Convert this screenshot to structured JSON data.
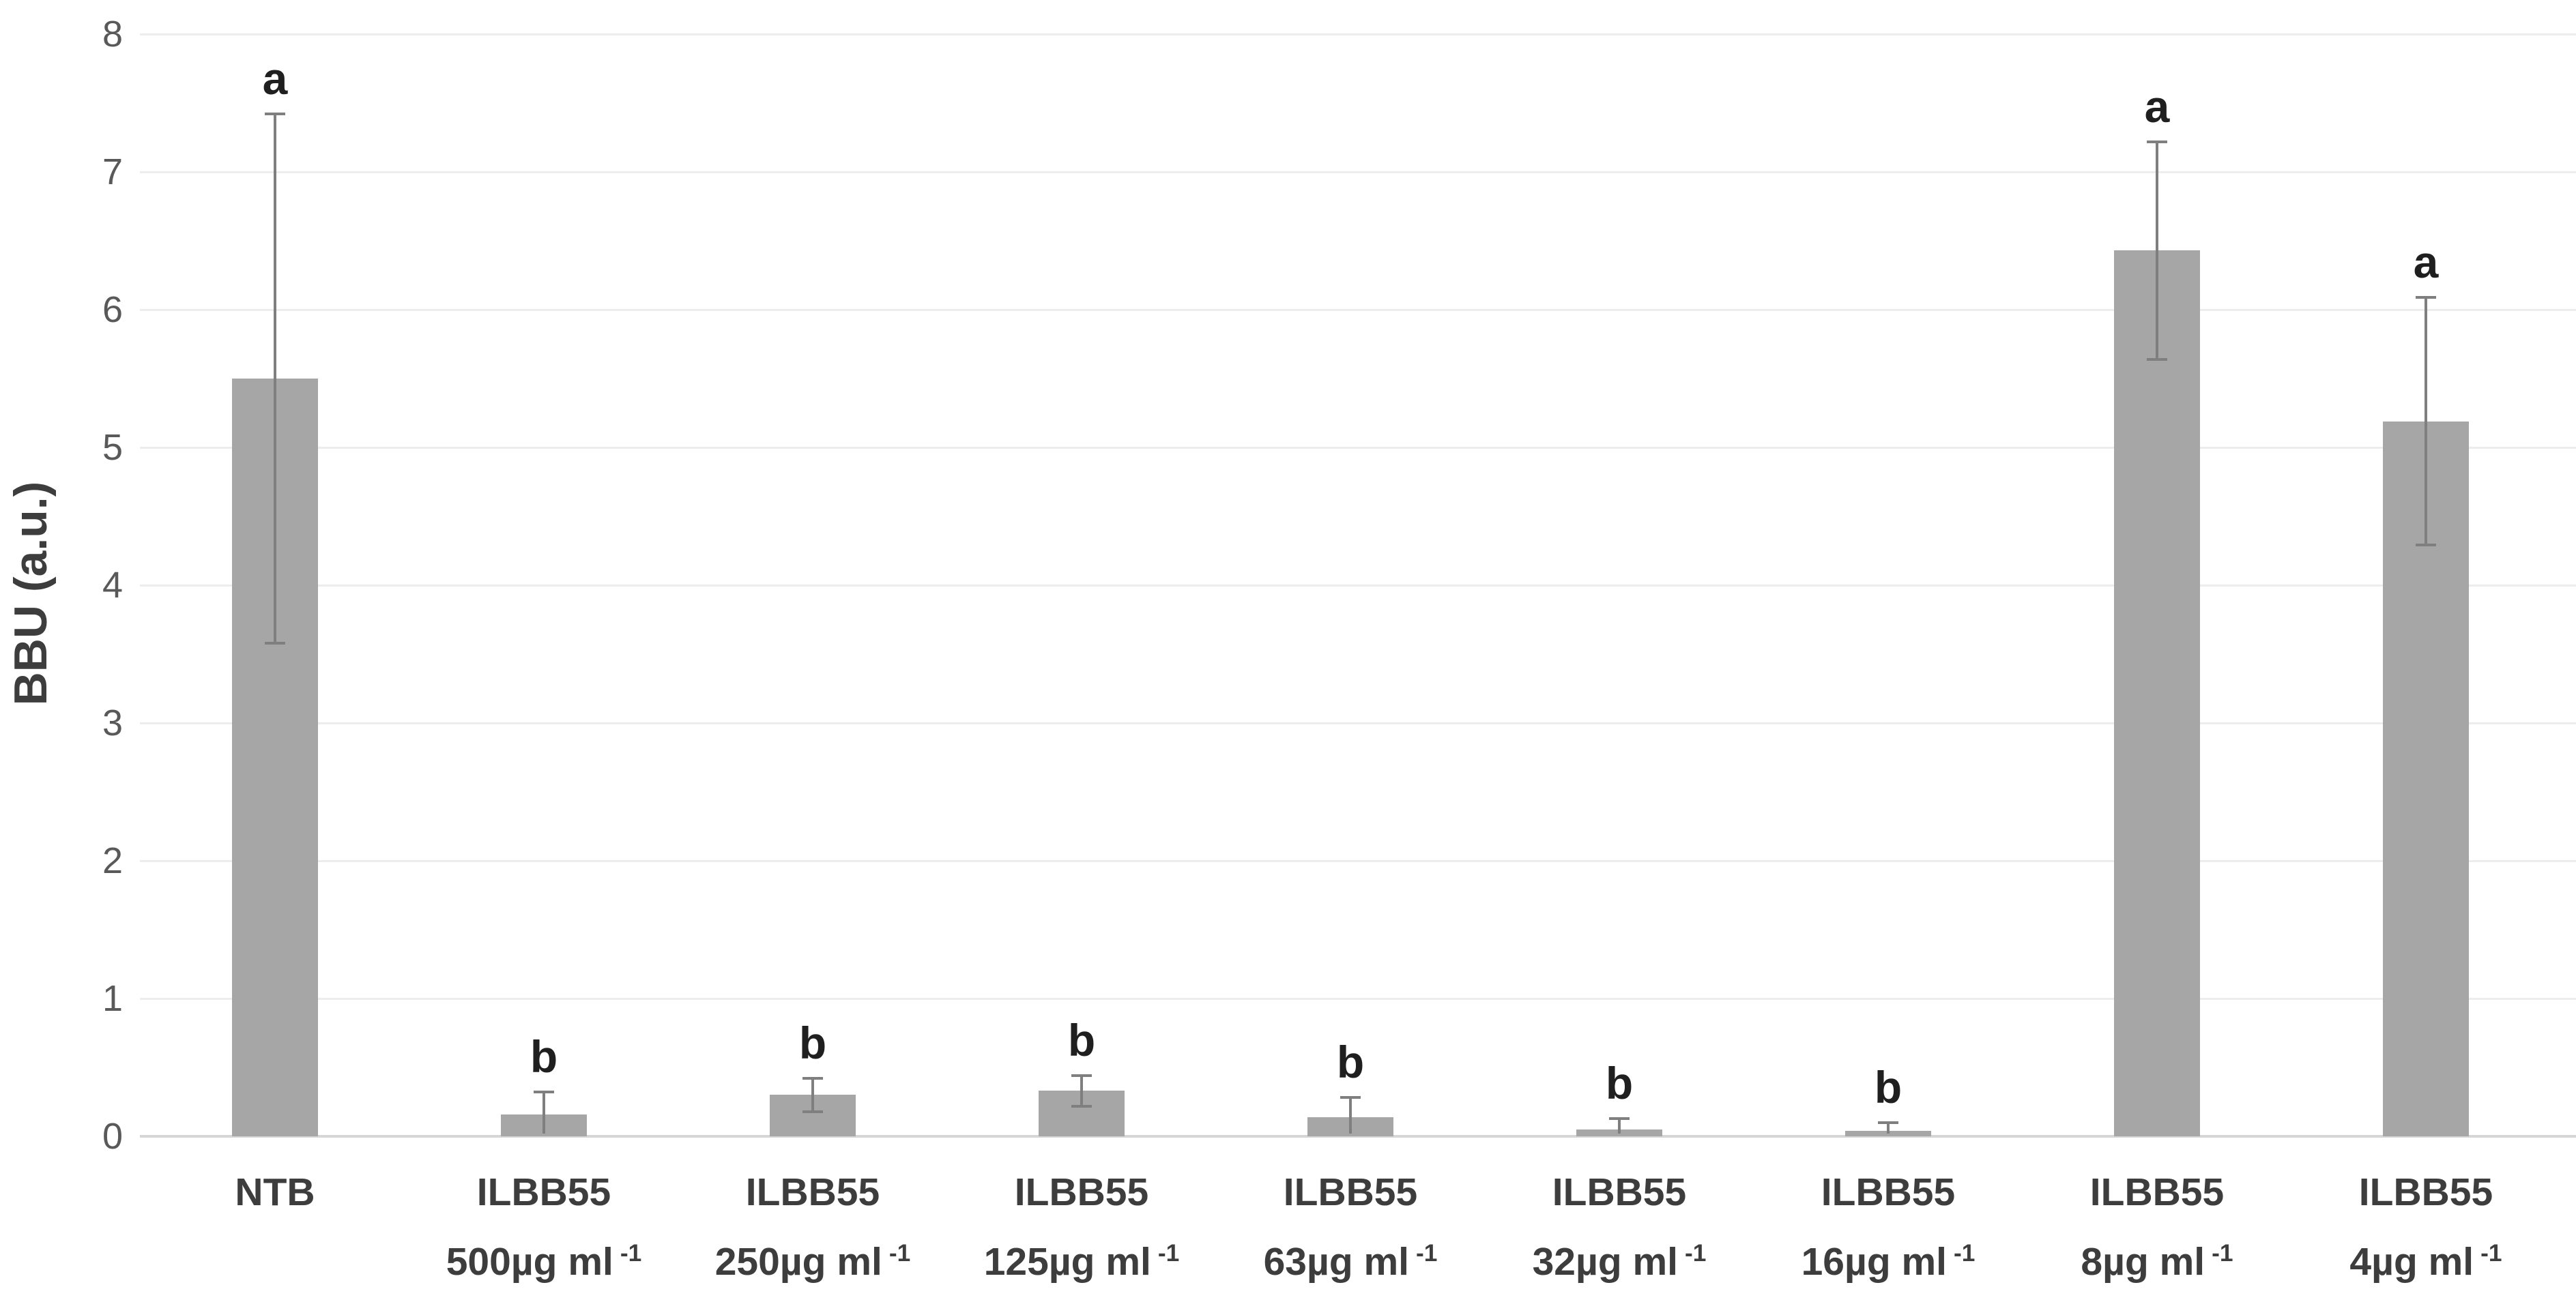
{
  "chart_data": {
    "type": "bar",
    "title": "",
    "xlabel": "",
    "ylabel": "BBU (a.u.)",
    "ylim": [
      0,
      8
    ],
    "yticks": [
      0,
      1,
      2,
      3,
      4,
      5,
      6,
      7,
      8
    ],
    "grid": true,
    "legend": false,
    "bar_color": "#a6a6a6",
    "error_color": "#7f7f7f",
    "grid_color": "#ededed",
    "axis_color": "#d6d6d6",
    "categories": [
      "NTB",
      "ILBB55 500µg ml⁻¹",
      "ILBB55 250µg ml⁻¹",
      "ILBB55 125µg ml⁻¹",
      "ILBB55 63µg ml⁻¹",
      "ILBB55 32µg ml⁻¹",
      "ILBB55 16µg ml⁻¹",
      "ILBB55 8µg ml⁻¹",
      "ILBB55 4µg ml⁻¹"
    ],
    "x_tick_labels": [
      {
        "line1": "NTB",
        "line2": "",
        "sup": ""
      },
      {
        "line1": "ILBB55",
        "line2": "500µg ml",
        "sup": "-1"
      },
      {
        "line1": "ILBB55",
        "line2": "250µg ml",
        "sup": "-1"
      },
      {
        "line1": "ILBB55",
        "line2": "125µg ml",
        "sup": "-1"
      },
      {
        "line1": "ILBB55",
        "line2": "63µg ml",
        "sup": "-1"
      },
      {
        "line1": "ILBB55",
        "line2": "32µg ml",
        "sup": "-1"
      },
      {
        "line1": "ILBB55",
        "line2": "16µg ml",
        "sup": "-1"
      },
      {
        "line1": "ILBB55",
        "line2": "8µg ml",
        "sup": "-1"
      },
      {
        "line1": "ILBB55",
        "line2": "4µg ml",
        "sup": "-1"
      }
    ],
    "values": [
      5.5,
      0.16,
      0.3,
      0.33,
      0.14,
      0.05,
      0.04,
      6.43,
      5.19
    ],
    "errors": [
      1.92,
      0.16,
      0.12,
      0.11,
      0.14,
      0.08,
      0.06,
      0.79,
      0.9
    ],
    "sig_letters": [
      "a",
      "b",
      "b",
      "b",
      "b",
      "b",
      "b",
      "a",
      "a"
    ]
  }
}
